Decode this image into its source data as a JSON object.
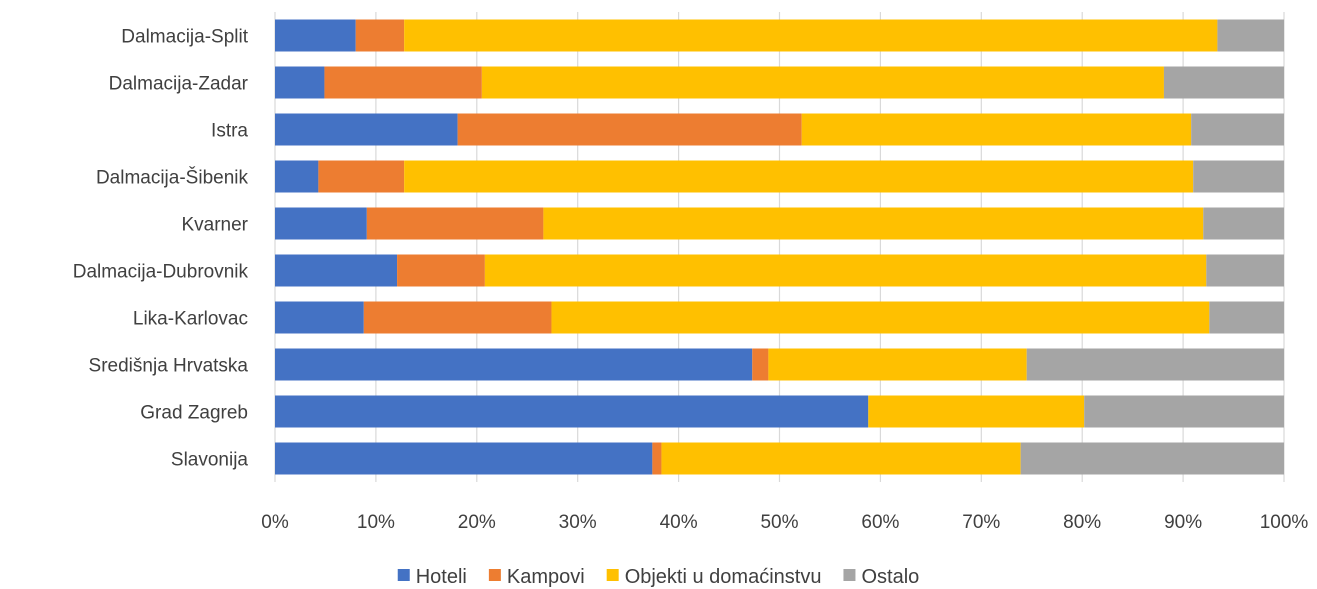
{
  "chart_data": {
    "type": "bar",
    "orientation": "horizontal",
    "stacked": "percent",
    "categories": [
      "Dalmacija-Split",
      "Dalmacija-Zadar",
      "Istra",
      "Dalmacija-Šibenik",
      "Kvarner",
      "Dalmacija-Dubrovnik",
      "Lika-Karlovac",
      "Središnja Hrvatska",
      "Grad Zagreb",
      "Slavonija"
    ],
    "series": [
      {
        "name": "Hoteli",
        "color": "#4472c4",
        "values": [
          8.0,
          4.9,
          18.1,
          4.3,
          9.1,
          12.1,
          8.8,
          47.3,
          58.8,
          37.4
        ]
      },
      {
        "name": "Kampovi",
        "color": "#ed7d31",
        "values": [
          4.8,
          15.6,
          34.1,
          8.5,
          17.5,
          8.7,
          18.6,
          1.6,
          0.0,
          0.9
        ]
      },
      {
        "name": "Objekti u domaćinstvu",
        "color": "#ffc000",
        "values": [
          80.6,
          67.6,
          38.6,
          78.2,
          65.4,
          71.5,
          65.2,
          25.6,
          21.4,
          35.6
        ]
      },
      {
        "name": "Ostalo",
        "color": "#a5a5a5",
        "values": [
          6.6,
          11.9,
          9.2,
          9.0,
          8.0,
          7.7,
          7.4,
          25.5,
          19.8,
          26.1
        ]
      }
    ],
    "xlim": [
      0,
      100
    ],
    "x_ticks": [
      "0%",
      "10%",
      "20%",
      "30%",
      "40%",
      "50%",
      "60%",
      "70%",
      "80%",
      "90%",
      "100%"
    ],
    "grid": "vertical",
    "legend": "bottom",
    "title": "",
    "xlabel": "",
    "ylabel": ""
  }
}
